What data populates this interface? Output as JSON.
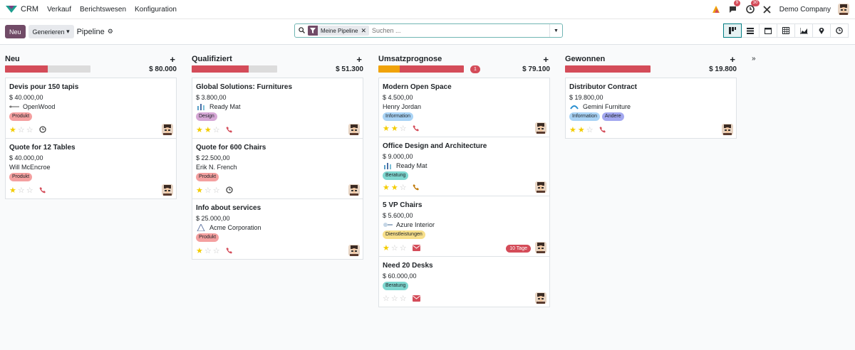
{
  "topbar": {
    "app": "CRM",
    "menus": [
      "Verkauf",
      "Berichtswesen",
      "Konfiguration"
    ],
    "messages_count": "9",
    "activities_count": "30",
    "company": "Demo Company"
  },
  "control": {
    "new_label": "Neu",
    "generate_label": "Generieren",
    "breadcrumb": "Pipeline"
  },
  "search": {
    "facet": "Meine Pipeline",
    "placeholder": "Suchen ..."
  },
  "views": [
    "kanban",
    "list",
    "calendar",
    "pivot",
    "graph",
    "map",
    "activity"
  ],
  "colors": {
    "green": "#21b799",
    "orange": "#f0a30a",
    "red": "#d44c59",
    "gray": "#dcdcdc"
  },
  "columns": [
    {
      "title": "Neu",
      "sum": "$ 80.000",
      "count": "",
      "progress": [
        {
          "color": "#d44c59",
          "pct": 50
        }
      ],
      "cards": [
        {
          "title": "Devis pour 150 tapis",
          "value": "$ 40.000,00",
          "customer": "OpenWood",
          "logo": "openwood",
          "tags": [
            {
              "label": "Produkt",
              "bg": "#f4a0a0"
            }
          ],
          "stars": 1,
          "activity": "clock",
          "late": ""
        },
        {
          "title": "Quote for 12 Tables",
          "value": "$ 40.000,00",
          "customer": "Will McEncroe",
          "logo": "",
          "tags": [
            {
              "label": "Produkt",
              "bg": "#f4a0a0"
            }
          ],
          "stars": 1,
          "activity": "phone",
          "late": ""
        }
      ]
    },
    {
      "title": "Qualifiziert",
      "sum": "$ 51.300",
      "count": "",
      "progress": [
        {
          "color": "#d44c59",
          "pct": 67
        }
      ],
      "cards": [
        {
          "title": "Global Solutions: Furnitures",
          "value": "$ 3.800,00",
          "customer": "Ready Mat",
          "logo": "readymat",
          "tags": [
            {
              "label": "Design",
              "bg": "#d6a8d6"
            }
          ],
          "stars": 2,
          "activity": "phone",
          "late": ""
        },
        {
          "title": "Quote for 600 Chairs",
          "value": "$ 22.500,00",
          "customer": "Erik N. French",
          "logo": "",
          "tags": [
            {
              "label": "Produkt",
              "bg": "#f4a0a0"
            }
          ],
          "stars": 1,
          "activity": "clock",
          "late": ""
        },
        {
          "title": "Info about services",
          "value": "$ 25.000,00",
          "customer": "Acme Corporation",
          "logo": "acme",
          "tags": [
            {
              "label": "Produkt",
              "bg": "#f4a0a0"
            }
          ],
          "stars": 1,
          "activity": "phone",
          "late": ""
        }
      ]
    },
    {
      "title": "Umsatzprognose",
      "sum": "$ 79.100",
      "count": "1",
      "progress": [
        {
          "color": "#f0a30a",
          "pct": 25
        },
        {
          "color": "#d44c59",
          "pct": 75
        }
      ],
      "cards": [
        {
          "title": "Modern Open Space",
          "value": "$ 4.500,00",
          "customer": "Henry Jordan",
          "logo": "",
          "tags": [
            {
              "label": "Information",
              "bg": "#a9d3f5"
            }
          ],
          "stars": 2,
          "activity": "phone",
          "late": ""
        },
        {
          "title": "Office Design and Architecture",
          "value": "$ 9.000,00",
          "customer": "Ready Mat",
          "logo": "readymat",
          "tags": [
            {
              "label": "Beratung",
              "bg": "#7fd7d0"
            }
          ],
          "stars": 2,
          "activity": "phone-orange",
          "late": ""
        },
        {
          "title": "5 VP Chairs",
          "value": "$ 5.600,00",
          "customer": "Azure Interior",
          "logo": "azure",
          "tags": [
            {
              "label": "Dienstleistungen",
              "bg": "#f7df8a"
            }
          ],
          "stars": 1,
          "activity": "mail",
          "late": "10 Tage"
        },
        {
          "title": "Need 20 Desks",
          "value": "$ 60.000,00",
          "customer": "",
          "logo": "",
          "tags": [
            {
              "label": "Beratung",
              "bg": "#7fd7d0"
            }
          ],
          "stars": 0,
          "activity": "mail",
          "late": ""
        }
      ]
    },
    {
      "title": "Gewonnen",
      "sum": "$ 19.800",
      "count": "",
      "progress": [
        {
          "color": "#d44c59",
          "pct": 100
        }
      ],
      "cards": [
        {
          "title": "Distributor Contract",
          "value": "$ 19.800,00",
          "customer": "Gemini Furniture",
          "logo": "gemini",
          "tags": [
            {
              "label": "Information",
              "bg": "#a9d3f5"
            },
            {
              "label": "Andere",
              "bg": "#a3a8f0"
            }
          ],
          "stars": 2,
          "activity": "phone",
          "late": ""
        }
      ]
    }
  ]
}
